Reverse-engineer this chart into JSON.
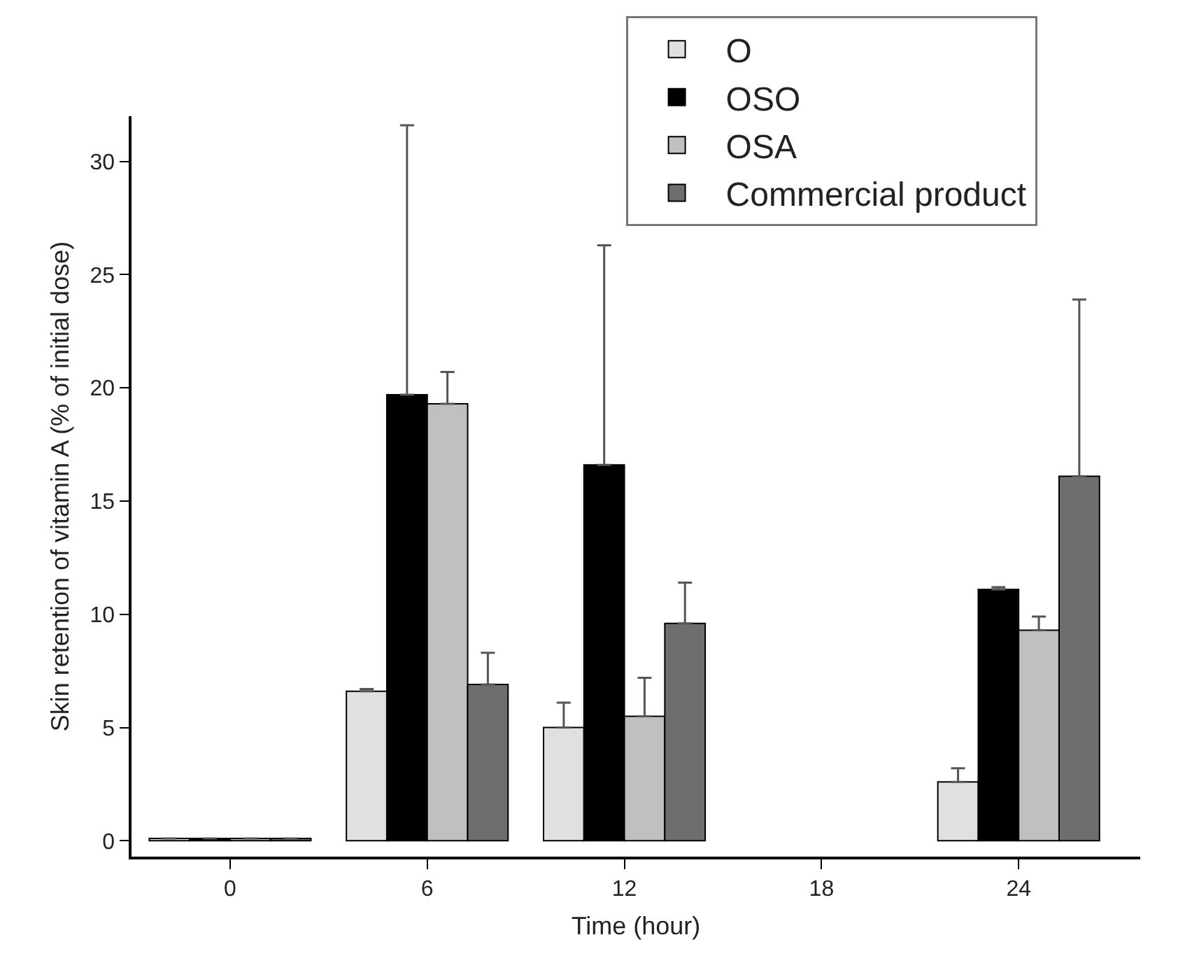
{
  "chart_data": {
    "type": "bar",
    "xlabel": "Time (hour)",
    "ylabel": "Skin retention of vitamin A (% of initial dose)",
    "x": [
      0,
      6,
      12,
      24
    ],
    "xlim": [
      -3,
      27.7
    ],
    "xticks": [
      0,
      6,
      12,
      18,
      24
    ],
    "ylim": [
      -0.7,
      32
    ],
    "yticks": [
      0,
      5,
      10,
      15,
      20,
      25,
      30
    ],
    "series": [
      {
        "name": "O",
        "color": "#e0e0e0",
        "values": [
          0.1,
          6.6,
          5.0,
          2.6
        ],
        "errors": [
          null,
          [
            6.6,
            6.7
          ],
          [
            5.0,
            6.1
          ],
          [
            2.6,
            3.2
          ]
        ]
      },
      {
        "name": "OSO",
        "color": "#000000",
        "values": [
          0.1,
          19.7,
          16.6,
          11.1
        ],
        "errors": [
          null,
          [
            19.7,
            31.6
          ],
          [
            16.6,
            26.3
          ],
          [
            11.1,
            11.2
          ]
        ]
      },
      {
        "name": "OSA",
        "color": "#c0c0c0",
        "values": [
          0.1,
          19.3,
          5.5,
          9.3
        ],
        "errors": [
          null,
          [
            19.3,
            20.7
          ],
          [
            5.5,
            7.2
          ],
          [
            9.3,
            9.9
          ]
        ]
      },
      {
        "name": "Commercial product",
        "color": "#6e6e6e",
        "values": [
          0.1,
          6.9,
          9.6,
          16.1
        ],
        "errors": [
          null,
          [
            6.9,
            8.3
          ],
          [
            9.6,
            11.4
          ],
          [
            16.1,
            23.9
          ]
        ]
      }
    ],
    "grid": false,
    "legend": "top right"
  }
}
